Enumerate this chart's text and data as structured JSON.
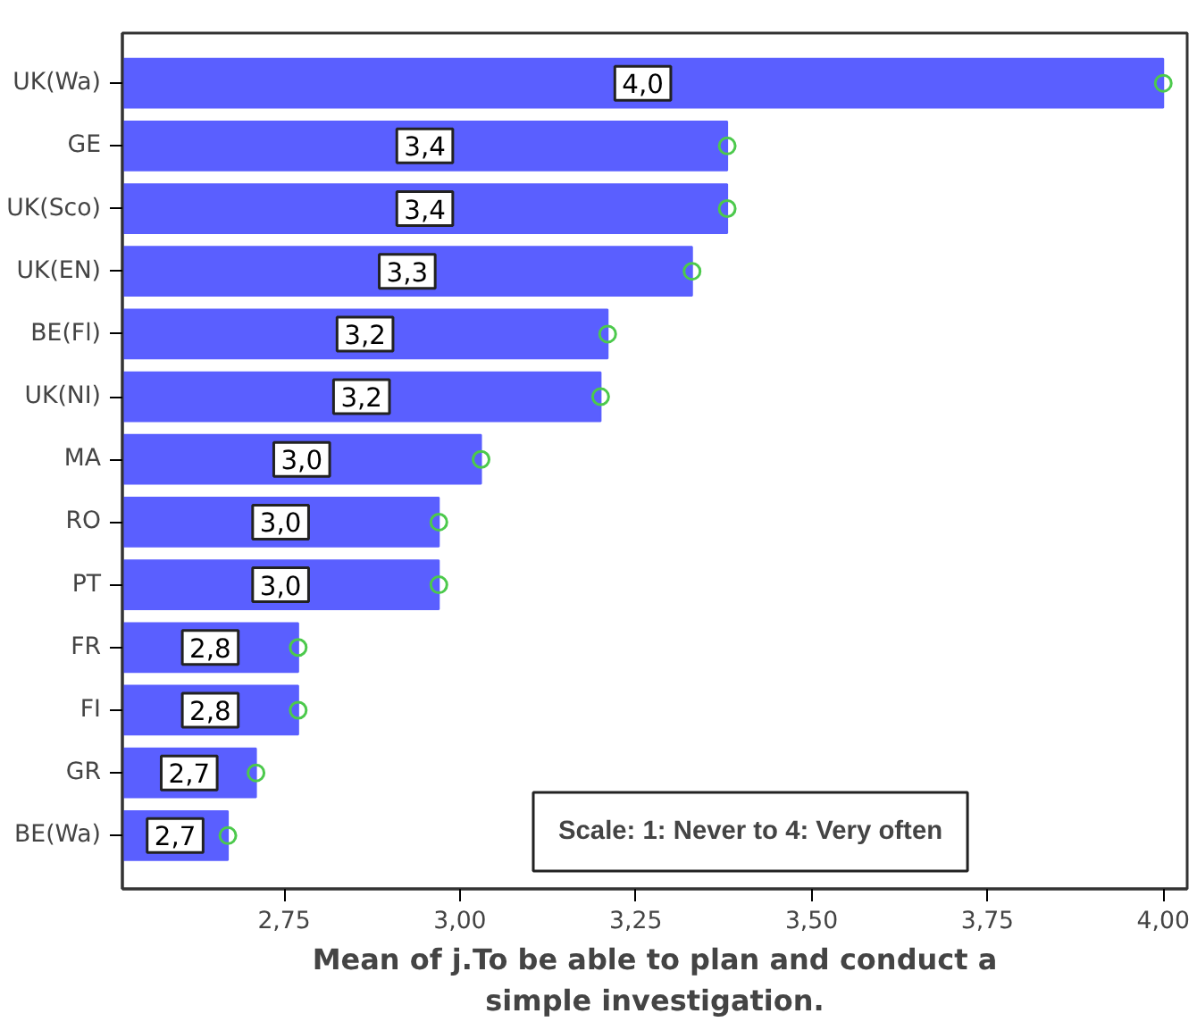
{
  "chart_data": {
    "type": "bar",
    "orientation": "horizontal",
    "xlabel": "Mean of j.To be able to plan and conduct a simple investigation.",
    "categories": [
      "UK(Wa)",
      "GE",
      "UK(Sco)",
      "UK(EN)",
      "BE(Fl)",
      "UK(NI)",
      "MA",
      "RO",
      "PT",
      "FR",
      "FI",
      "GR",
      "BE(Wa)"
    ],
    "series": [
      {
        "color": "#5a5fff",
        "values": [
          4.0,
          3.38,
          3.38,
          3.33,
          3.21,
          3.2,
          3.03,
          2.97,
          2.97,
          2.77,
          2.77,
          2.71,
          2.67
        ],
        "value_labels": [
          "4,0",
          "3,4",
          "3,4",
          "3,3",
          "3,2",
          "3,2",
          "3,0",
          "3,0",
          "3,0",
          "2,8",
          "2,8",
          "2,7",
          "2,7"
        ]
      },
      {
        "type": "scatter",
        "marker": "circle",
        "color": "#4cc94c",
        "values": [
          4.0,
          3.38,
          3.38,
          3.33,
          3.21,
          3.2,
          3.03,
          2.97,
          2.97,
          2.77,
          2.77,
          2.71,
          2.67
        ]
      }
    ],
    "xlim": [
      2.52,
      4.034
    ],
    "xticks": [
      {
        "value": 2.75,
        "label": "2,75"
      },
      {
        "value": 3.0,
        "label": "3,00"
      },
      {
        "value": 3.25,
        "label": "3,25"
      },
      {
        "value": 3.5,
        "label": "3,50"
      },
      {
        "value": 3.75,
        "label": "3,75"
      },
      {
        "value": 4.0,
        "label": "4,00"
      }
    ],
    "annotations": [
      "Scale: 1: Never to 4: Very often"
    ],
    "grid": false
  }
}
